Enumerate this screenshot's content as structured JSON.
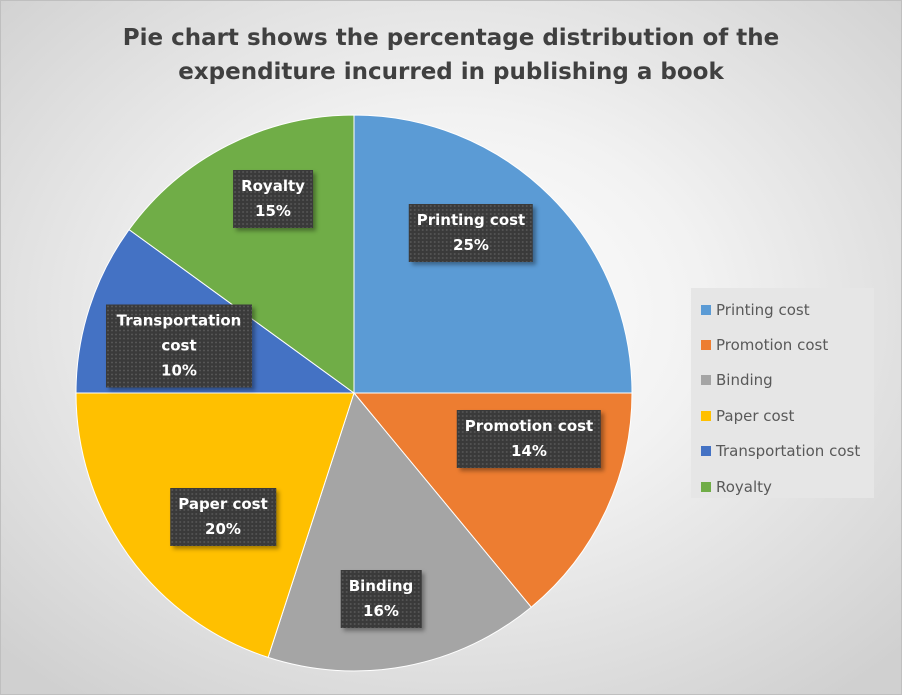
{
  "chart_data": {
    "type": "pie",
    "title": "Pie chart shows the percentage distribution of the expenditure incurred in publishing a book",
    "title_lines": [
      "Pie chart shows the percentage distribution of the",
      "expenditure incurred in publishing a book"
    ],
    "legend_position": "right",
    "slices": [
      {
        "label": "Printing cost",
        "value": 25,
        "text": "25%",
        "color": "#5b9bd5"
      },
      {
        "label": "Promotion cost",
        "value": 14,
        "text": "14%",
        "color": "#ed7d31"
      },
      {
        "label": "Binding",
        "value": 16,
        "text": "16%",
        "color": "#a5a5a5"
      },
      {
        "label": "Paper cost",
        "value": 20,
        "text": "20%",
        "color": "#ffc000"
      },
      {
        "label": "Transportation cost",
        "value": 10,
        "text": "10%",
        "color": "#4472c4"
      },
      {
        "label": "Royalty",
        "value": 15,
        "text": "15%",
        "color": "#70ad47"
      }
    ]
  }
}
